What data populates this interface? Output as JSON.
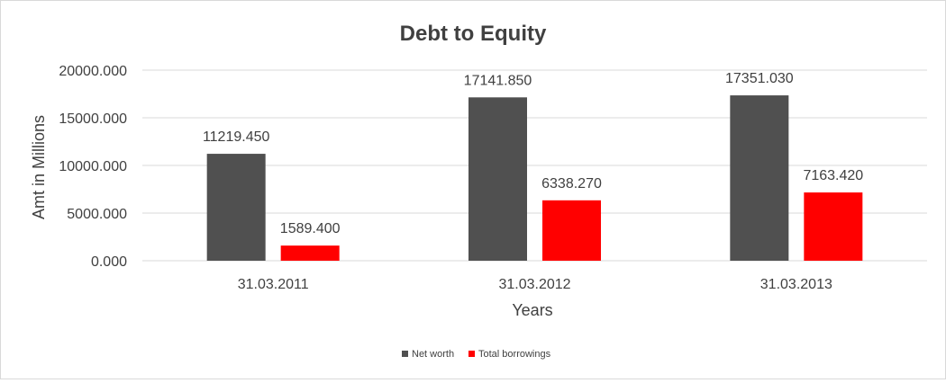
{
  "chart_data": {
    "type": "bar",
    "title": "Debt to Equity",
    "xlabel": "Years",
    "ylabel": "Amt in Millions",
    "categories": [
      "31.03.2011",
      "31.03.2012",
      "31.03.2013"
    ],
    "series": [
      {
        "name": "Net worth",
        "color": "#505050",
        "values": [
          11219.45,
          17141.85,
          17351.03
        ]
      },
      {
        "name": "Total borrowings",
        "color": "#ff0000",
        "values": [
          1589.4,
          6338.27,
          7163.42
        ]
      }
    ],
    "value_labels": [
      [
        "11219.450",
        "17141.850",
        "17351.030"
      ],
      [
        "1589.400",
        "6338.270",
        "7163.420"
      ]
    ],
    "ylim": [
      0,
      20000
    ],
    "yticks": [
      0,
      5000,
      10000,
      15000,
      20000
    ],
    "ytick_labels": [
      "0.000",
      "5000.000",
      "10000.000",
      "15000.000",
      "20000.000"
    ],
    "grid": true,
    "legend_position": "bottom"
  }
}
